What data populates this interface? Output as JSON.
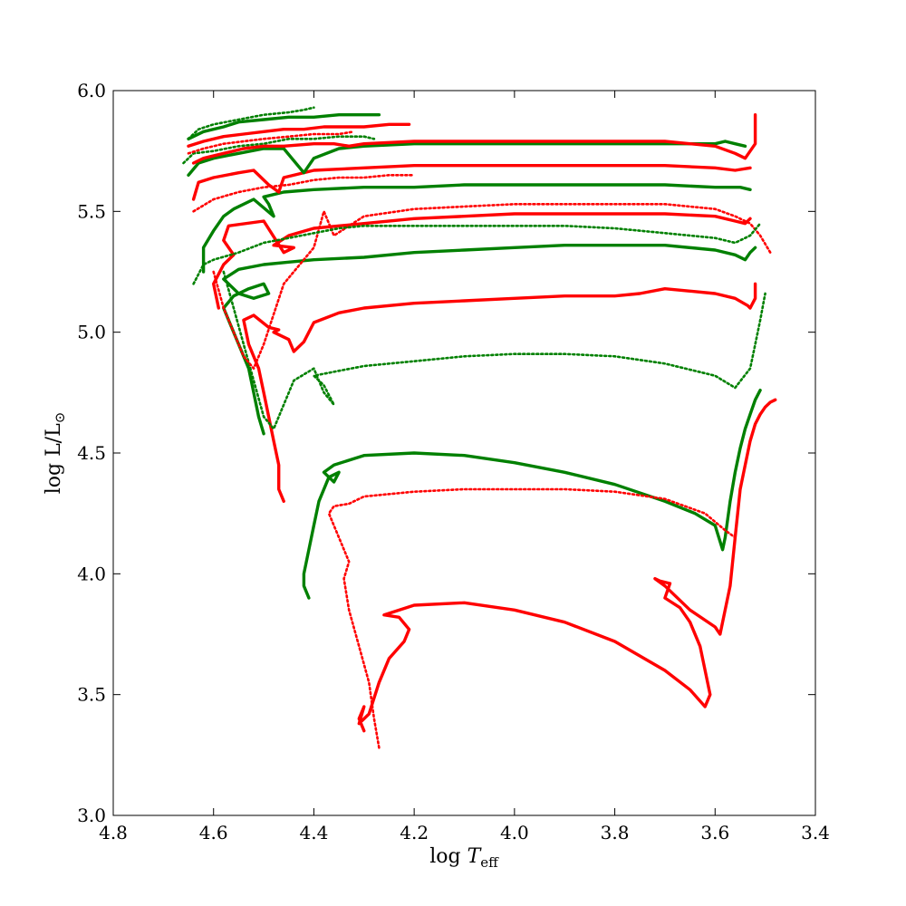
{
  "chart_data": {
    "type": "line",
    "title": "",
    "xlabel_parts": {
      "main": "log ",
      "symbol": "T",
      "sub": "eff"
    },
    "ylabel_parts": {
      "main": "log L/L",
      "sun": "⊙"
    },
    "xlim": [
      4.8,
      3.4
    ],
    "ylim": [
      3.0,
      6.0
    ],
    "x_reversed": true,
    "xticks": [
      "4.8",
      "4.6",
      "4.4",
      "4.2",
      "4.0",
      "3.8",
      "3.6",
      "3.4"
    ],
    "yticks": [
      "3.0",
      "3.5",
      "4.0",
      "4.5",
      "5.0",
      "5.5",
      "6.0"
    ],
    "grid": false,
    "legend": "none",
    "colors": {
      "green": "#008000",
      "red": "#ff0000"
    },
    "series": [
      {
        "color": "red",
        "style": "solid",
        "x": [
          4.3,
          4.31,
          4.3,
          4.31,
          4.29,
          4.27,
          4.25,
          4.22,
          4.21,
          4.23,
          4.26,
          4.2,
          4.1,
          4.0,
          3.9,
          3.8,
          3.7,
          3.65,
          3.62,
          3.61,
          3.63,
          3.65,
          3.67,
          3.7,
          3.69,
          3.71,
          3.72,
          3.7,
          3.65,
          3.6,
          3.59,
          3.57,
          3.56,
          3.55,
          3.54,
          3.53,
          3.52,
          3.51,
          3.5,
          3.49,
          3.48
        ],
        "y": [
          3.35,
          3.4,
          3.45,
          3.38,
          3.42,
          3.55,
          3.65,
          3.72,
          3.77,
          3.82,
          3.83,
          3.87,
          3.88,
          3.85,
          3.8,
          3.72,
          3.6,
          3.52,
          3.45,
          3.5,
          3.7,
          3.8,
          3.86,
          3.9,
          3.96,
          3.97,
          3.98,
          3.95,
          3.85,
          3.78,
          3.75,
          3.95,
          4.15,
          4.35,
          4.45,
          4.55,
          4.62,
          4.66,
          4.69,
          4.71,
          4.72
        ]
      },
      {
        "color": "green",
        "style": "solid",
        "x": [
          4.41,
          4.42,
          4.42,
          4.41,
          4.4,
          4.39,
          4.37,
          4.35,
          4.36,
          4.38,
          4.36,
          4.3,
          4.2,
          4.1,
          4.0,
          3.9,
          3.8,
          3.7,
          3.64,
          3.6,
          3.585,
          3.58,
          3.57,
          3.56,
          3.55,
          3.54,
          3.53,
          3.52,
          3.51
        ],
        "y": [
          3.9,
          3.95,
          4.0,
          4.1,
          4.2,
          4.3,
          4.4,
          4.42,
          4.38,
          4.42,
          4.45,
          4.49,
          4.5,
          4.49,
          4.46,
          4.42,
          4.37,
          4.3,
          4.25,
          4.2,
          4.1,
          4.15,
          4.3,
          4.42,
          4.52,
          4.6,
          4.66,
          4.72,
          4.76
        ]
      },
      {
        "color": "red",
        "style": "dotted",
        "x": [
          4.27,
          4.28,
          4.29,
          4.31,
          4.33,
          4.34,
          4.33,
          4.35,
          4.37,
          4.36,
          4.33,
          4.3,
          4.2,
          4.1,
          4.0,
          3.9,
          3.8,
          3.7,
          3.62,
          3.58,
          3.56
        ],
        "y": [
          3.28,
          3.4,
          3.55,
          3.7,
          3.85,
          3.98,
          4.05,
          4.15,
          4.25,
          4.28,
          4.29,
          4.32,
          4.34,
          4.35,
          4.35,
          4.35,
          4.34,
          4.31,
          4.25,
          4.18,
          4.15
        ]
      },
      {
        "color": "red",
        "style": "solid",
        "x": [
          4.46,
          4.47,
          4.47,
          4.48,
          4.49,
          4.5,
          4.51,
          4.53,
          4.54,
          4.52,
          4.49,
          4.47,
          4.48,
          4.45,
          4.44,
          4.42,
          4.4,
          4.35,
          4.3,
          4.2,
          4.1,
          4.0,
          3.9,
          3.8,
          3.75,
          3.7,
          3.65,
          3.6,
          3.56,
          3.535,
          3.53,
          3.52,
          3.52
        ],
        "y": [
          4.3,
          4.35,
          4.45,
          4.55,
          4.65,
          4.75,
          4.85,
          4.95,
          5.05,
          5.07,
          5.02,
          5.01,
          5.0,
          4.97,
          4.92,
          4.96,
          5.04,
          5.08,
          5.1,
          5.12,
          5.13,
          5.14,
          5.15,
          5.15,
          5.16,
          5.18,
          5.17,
          5.16,
          5.14,
          5.11,
          5.1,
          5.14,
          5.2
        ]
      },
      {
        "color": "green",
        "style": "solid",
        "x": [
          4.5,
          4.51,
          4.52,
          4.53,
          4.55,
          4.57,
          4.58,
          4.56,
          4.53,
          4.5,
          4.49,
          4.52,
          4.55,
          4.58,
          4.55,
          4.5,
          4.45,
          4.4,
          4.3,
          4.2,
          4.1,
          4.0,
          3.9,
          3.8,
          3.7,
          3.6,
          3.56,
          3.54,
          3.53,
          3.52
        ],
        "y": [
          4.58,
          4.65,
          4.75,
          4.85,
          4.95,
          5.05,
          5.1,
          5.15,
          5.18,
          5.2,
          5.16,
          5.14,
          5.16,
          5.22,
          5.26,
          5.28,
          5.29,
          5.3,
          5.31,
          5.33,
          5.34,
          5.35,
          5.36,
          5.36,
          5.36,
          5.34,
          5.32,
          5.3,
          5.33,
          5.35
        ]
      },
      {
        "color": "green",
        "style": "dotted",
        "x": [
          4.58,
          4.56,
          4.54,
          4.52,
          4.5,
          4.48,
          4.46,
          4.44,
          4.4,
          4.38,
          4.36,
          4.38,
          4.4,
          4.35,
          4.3,
          4.2,
          4.1,
          4.0,
          3.9,
          3.8,
          3.7,
          3.6,
          3.56,
          3.53,
          3.52,
          3.51,
          3.5
        ],
        "y": [
          5.25,
          5.1,
          4.95,
          4.8,
          4.65,
          4.6,
          4.7,
          4.8,
          4.85,
          4.75,
          4.7,
          4.78,
          4.82,
          4.84,
          4.86,
          4.88,
          4.9,
          4.91,
          4.91,
          4.9,
          4.87,
          4.82,
          4.77,
          4.85,
          4.95,
          5.05,
          5.16
        ]
      },
      {
        "color": "red",
        "style": "solid",
        "x": [
          4.59,
          4.6,
          4.58,
          4.56,
          4.58,
          4.57,
          4.5,
          4.46,
          4.44,
          4.48,
          4.45,
          4.4,
          4.3,
          4.2,
          4.1,
          4.0,
          3.9,
          3.8,
          3.7,
          3.6,
          3.56,
          3.54,
          3.53
        ],
        "y": [
          5.1,
          5.2,
          5.28,
          5.32,
          5.38,
          5.44,
          5.46,
          5.33,
          5.35,
          5.36,
          5.4,
          5.43,
          5.45,
          5.47,
          5.48,
          5.49,
          5.49,
          5.49,
          5.49,
          5.48,
          5.46,
          5.45,
          5.47
        ]
      },
      {
        "color": "red",
        "style": "dotted",
        "x": [
          4.6,
          4.58,
          4.56,
          4.54,
          4.52,
          4.5,
          4.46,
          4.4,
          4.38,
          4.36,
          4.3,
          4.2,
          4.1,
          4.0,
          3.9,
          3.8,
          3.7,
          3.6,
          3.56,
          3.53,
          3.51,
          3.49
        ],
        "y": [
          5.25,
          5.1,
          5.0,
          4.9,
          4.85,
          4.95,
          5.2,
          5.35,
          5.5,
          5.4,
          5.48,
          5.51,
          5.52,
          5.53,
          5.53,
          5.53,
          5.53,
          5.51,
          5.48,
          5.45,
          5.4,
          5.33
        ]
      },
      {
        "color": "green",
        "style": "solid",
        "x": [
          4.62,
          4.62,
          4.6,
          4.58,
          4.56,
          4.52,
          4.48,
          4.49,
          4.5,
          4.46,
          4.4,
          4.3,
          4.2,
          4.1,
          4.0,
          3.9,
          3.8,
          3.7,
          3.6,
          3.55,
          3.53
        ],
        "y": [
          5.25,
          5.35,
          5.42,
          5.48,
          5.51,
          5.55,
          5.48,
          5.53,
          5.56,
          5.58,
          5.59,
          5.6,
          5.6,
          5.61,
          5.61,
          5.61,
          5.61,
          5.61,
          5.6,
          5.6,
          5.59
        ]
      },
      {
        "color": "green",
        "style": "dotted",
        "x": [
          4.64,
          4.62,
          4.6,
          4.55,
          4.5,
          4.45,
          4.4,
          4.35,
          4.3,
          4.2,
          4.1,
          4.0,
          3.9,
          3.8,
          3.7,
          3.6,
          3.56,
          3.53,
          3.51
        ],
        "y": [
          5.2,
          5.28,
          5.3,
          5.33,
          5.37,
          5.39,
          5.41,
          5.43,
          5.44,
          5.44,
          5.44,
          5.44,
          5.44,
          5.43,
          5.41,
          5.39,
          5.37,
          5.4,
          5.45
        ]
      },
      {
        "color": "red",
        "style": "solid",
        "x": [
          4.64,
          4.63,
          4.6,
          4.55,
          4.52,
          4.49,
          4.47,
          4.46,
          4.4,
          4.3,
          4.2,
          4.1,
          4.0,
          3.9,
          3.8,
          3.7,
          3.6,
          3.56,
          3.53
        ],
        "y": [
          5.55,
          5.62,
          5.64,
          5.66,
          5.67,
          5.61,
          5.58,
          5.64,
          5.67,
          5.68,
          5.69,
          5.69,
          5.69,
          5.69,
          5.69,
          5.69,
          5.68,
          5.67,
          5.68
        ]
      },
      {
        "color": "red",
        "style": "dotted",
        "x": [
          4.64,
          4.6,
          4.55,
          4.5,
          4.45,
          4.4,
          4.35,
          4.3,
          4.25,
          4.22,
          4.2
        ],
        "y": [
          5.5,
          5.55,
          5.58,
          5.6,
          5.61,
          5.63,
          5.64,
          5.64,
          5.65,
          5.65,
          5.65
        ]
      },
      {
        "color": "green",
        "style": "solid",
        "x": [
          4.65,
          4.63,
          4.6,
          4.55,
          4.5,
          4.46,
          4.42,
          4.4,
          4.35,
          4.3,
          4.2,
          4.1,
          4.0,
          3.9,
          3.8,
          3.7,
          3.6,
          3.58,
          3.56,
          3.54
        ],
        "y": [
          5.65,
          5.7,
          5.72,
          5.74,
          5.76,
          5.76,
          5.66,
          5.72,
          5.76,
          5.77,
          5.78,
          5.78,
          5.78,
          5.78,
          5.78,
          5.78,
          5.78,
          5.79,
          5.78,
          5.77
        ]
      },
      {
        "color": "green",
        "style": "dotted",
        "x": [
          4.66,
          4.64,
          4.6,
          4.55,
          4.5,
          4.45,
          4.4,
          4.35,
          4.3,
          4.28
        ],
        "y": [
          5.7,
          5.74,
          5.75,
          5.77,
          5.78,
          5.8,
          5.8,
          5.81,
          5.81,
          5.8
        ]
      },
      {
        "color": "red",
        "style": "solid",
        "x": [
          4.64,
          4.62,
          4.58,
          4.54,
          4.5,
          4.46,
          4.4,
          4.36,
          4.33,
          4.3,
          4.2,
          4.1,
          4.0,
          3.9,
          3.8,
          3.7,
          3.6,
          3.56,
          3.54,
          3.52,
          3.52
        ],
        "y": [
          5.7,
          5.72,
          5.74,
          5.76,
          5.77,
          5.77,
          5.78,
          5.78,
          5.77,
          5.78,
          5.79,
          5.79,
          5.79,
          5.79,
          5.79,
          5.79,
          5.77,
          5.74,
          5.72,
          5.78,
          5.9
        ]
      },
      {
        "color": "red",
        "style": "dotted",
        "x": [
          4.65,
          4.62,
          4.58,
          4.54,
          4.5,
          4.45,
          4.4,
          4.35,
          4.32
        ],
        "y": [
          5.74,
          5.76,
          5.78,
          5.79,
          5.8,
          5.81,
          5.82,
          5.82,
          5.83
        ]
      },
      {
        "color": "red",
        "style": "solid",
        "x": [
          4.65,
          4.62,
          4.58,
          4.54,
          4.5,
          4.46,
          4.42,
          4.38,
          4.34,
          4.3,
          4.25,
          4.21
        ],
        "y": [
          5.77,
          5.79,
          5.81,
          5.82,
          5.83,
          5.84,
          5.84,
          5.85,
          5.85,
          5.85,
          5.86,
          5.86
        ]
      },
      {
        "color": "green",
        "style": "solid",
        "x": [
          4.65,
          4.62,
          4.58,
          4.55,
          4.5,
          4.45,
          4.4,
          4.35,
          4.3,
          4.27
        ],
        "y": [
          5.8,
          5.83,
          5.85,
          5.87,
          5.88,
          5.89,
          5.89,
          5.9,
          5.9,
          5.9
        ]
      },
      {
        "color": "green",
        "style": "dotted",
        "x": [
          4.65,
          4.63,
          4.6,
          4.55,
          4.5,
          4.45,
          4.42,
          4.4
        ],
        "y": [
          5.8,
          5.84,
          5.86,
          5.88,
          5.9,
          5.91,
          5.92,
          5.93
        ]
      }
    ]
  }
}
